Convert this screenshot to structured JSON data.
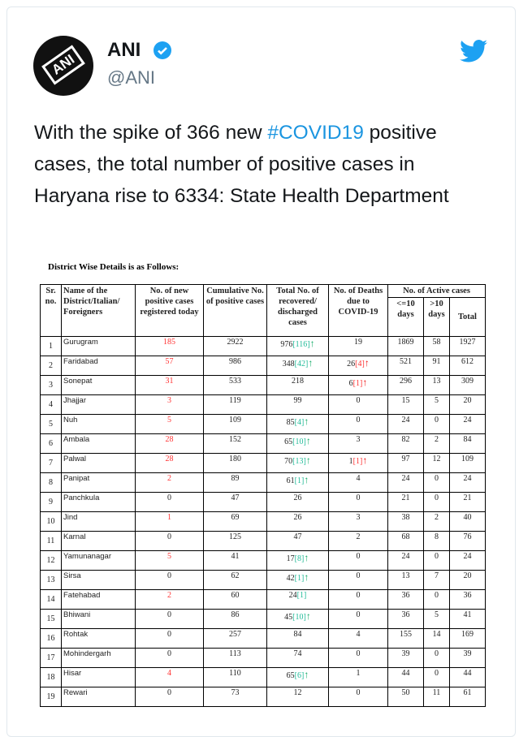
{
  "tweet": {
    "name": "ANI",
    "handle": "@ANI",
    "avatar_text": "ANI",
    "text_before": "With the spike of 366 new ",
    "hashtag": "#COVID19",
    "text_after": " positive cases, the total number of positive cases in Haryana rise to 6334: State Health Department"
  },
  "sheet": {
    "title": "District Wise Details is as Follows:",
    "headers": {
      "sr": "Sr. no.",
      "name": "Name of the District/Italian/ Foreigners",
      "new": "No. of new positive cases registered today",
      "cum": "Cumulative No. of positive cases",
      "rec": "Total No. of recovered/ discharged cases",
      "deaths": "No. of Deaths due to COVID-19",
      "active": "No. of Active cases",
      "le10": "<=10 days",
      "gt10": ">10 days",
      "total": "Total"
    },
    "rows": [
      {
        "sr": "1",
        "name": "Gurugram",
        "new": "185",
        "cum": "2922",
        "rec": "976",
        "rec_d": "[116]",
        "rec_up": true,
        "dea": "19",
        "dea_d": "",
        "dea_up": false,
        "a": "1869",
        "b": "58",
        "t": "1927"
      },
      {
        "sr": "2",
        "name": "Faridabad",
        "new": "57",
        "cum": "986",
        "rec": "348",
        "rec_d": "[42]",
        "rec_up": true,
        "dea": "26",
        "dea_d": "[4]",
        "dea_up": true,
        "a": "521",
        "b": "91",
        "t": "612"
      },
      {
        "sr": "3",
        "name": "Sonepat",
        "new": "31",
        "cum": "533",
        "rec": "218",
        "rec_d": "",
        "rec_up": false,
        "dea": "6",
        "dea_d": "[1]",
        "dea_up": true,
        "a": "296",
        "b": "13",
        "t": "309"
      },
      {
        "sr": "4",
        "name": "Jhajjar",
        "new": "3",
        "cum": "119",
        "rec": "99",
        "rec_d": "",
        "rec_up": false,
        "dea": "0",
        "dea_d": "",
        "dea_up": false,
        "a": "15",
        "b": "5",
        "t": "20"
      },
      {
        "sr": "5",
        "name": "Nuh",
        "new": "5",
        "cum": "109",
        "rec": "85",
        "rec_d": "[4]",
        "rec_up": true,
        "dea": "0",
        "dea_d": "",
        "dea_up": false,
        "a": "24",
        "b": "0",
        "t": "24"
      },
      {
        "sr": "6",
        "name": "Ambala",
        "new": "28",
        "cum": "152",
        "rec": "65",
        "rec_d": "[10]",
        "rec_up": true,
        "dea": "3",
        "dea_d": "",
        "dea_up": false,
        "a": "82",
        "b": "2",
        "t": "84"
      },
      {
        "sr": "7",
        "name": "Palwal",
        "new": "28",
        "cum": "180",
        "rec": "70",
        "rec_d": "[13]",
        "rec_up": true,
        "dea": "1",
        "dea_d": "[1]",
        "dea_up": true,
        "a": "97",
        "b": "12",
        "t": "109"
      },
      {
        "sr": "8",
        "name": "Panipat",
        "new": "2",
        "cum": "89",
        "rec": "61",
        "rec_d": "[1]",
        "rec_up": true,
        "dea": "4",
        "dea_d": "",
        "dea_up": false,
        "a": "24",
        "b": "0",
        "t": "24"
      },
      {
        "sr": "9",
        "name": "Panchkula",
        "new": "0",
        "cum": "47",
        "rec": "26",
        "rec_d": "",
        "rec_up": false,
        "dea": "0",
        "dea_d": "",
        "dea_up": false,
        "a": "21",
        "b": "0",
        "t": "21"
      },
      {
        "sr": "10",
        "name": "Jind",
        "new": "1",
        "cum": "69",
        "rec": "26",
        "rec_d": "",
        "rec_up": false,
        "dea": "3",
        "dea_d": "",
        "dea_up": false,
        "a": "38",
        "b": "2",
        "t": "40"
      },
      {
        "sr": "11",
        "name": "Karnal",
        "new": "0",
        "cum": "125",
        "rec": "47",
        "rec_d": "",
        "rec_up": false,
        "dea": "2",
        "dea_d": "",
        "dea_up": false,
        "a": "68",
        "b": "8",
        "t": "76"
      },
      {
        "sr": "12",
        "name": "Yamunanagar",
        "new": "5",
        "cum": "41",
        "rec": "17",
        "rec_d": "[8]",
        "rec_up": true,
        "dea": "0",
        "dea_d": "",
        "dea_up": false,
        "a": "24",
        "b": "0",
        "t": "24"
      },
      {
        "sr": "13",
        "name": "Sirsa",
        "new": "0",
        "cum": "62",
        "rec": "42",
        "rec_d": "[1]",
        "rec_up": true,
        "dea": "0",
        "dea_d": "",
        "dea_up": false,
        "a": "13",
        "b": "7",
        "t": "20"
      },
      {
        "sr": "14",
        "name": "Fatehabad",
        "new": "2",
        "cum": "60",
        "rec": "24",
        "rec_d": "[1]",
        "rec_up": false,
        "dea": "0",
        "dea_d": "",
        "dea_up": false,
        "a": "36",
        "b": "0",
        "t": "36"
      },
      {
        "sr": "15",
        "name": "Bhiwani",
        "new": "0",
        "cum": "86",
        "rec": "45",
        "rec_d": "[10]",
        "rec_up": true,
        "dea": "0",
        "dea_d": "",
        "dea_up": false,
        "a": "36",
        "b": "5",
        "t": "41"
      },
      {
        "sr": "16",
        "name": "Rohtak",
        "new": "0",
        "cum": "257",
        "rec": "84",
        "rec_d": "",
        "rec_up": false,
        "dea": "4",
        "dea_d": "",
        "dea_up": false,
        "a": "155",
        "b": "14",
        "t": "169"
      },
      {
        "sr": "17",
        "name": "Mohindergarh",
        "new": "0",
        "cum": "113",
        "rec": "74",
        "rec_d": "",
        "rec_up": false,
        "dea": "0",
        "dea_d": "",
        "dea_up": false,
        "a": "39",
        "b": "0",
        "t": "39"
      },
      {
        "sr": "18",
        "name": "Hisar",
        "new": "4",
        "cum": "110",
        "rec": "65",
        "rec_d": "[6]",
        "rec_up": true,
        "dea": "1",
        "dea_d": "",
        "dea_up": false,
        "a": "44",
        "b": "0",
        "t": "44"
      },
      {
        "sr": "19",
        "name": "Rewari",
        "new": "0",
        "cum": "73",
        "rec": "12",
        "rec_d": "",
        "rec_up": false,
        "dea": "0",
        "dea_d": "",
        "dea_up": false,
        "a": "50",
        "b": "11",
        "t": "61"
      }
    ]
  },
  "colors": {
    "link": "#1b95e0",
    "twitter": "#1da1f2",
    "new_cases": "#ff3333",
    "recovered_delta": "#22bb99"
  }
}
